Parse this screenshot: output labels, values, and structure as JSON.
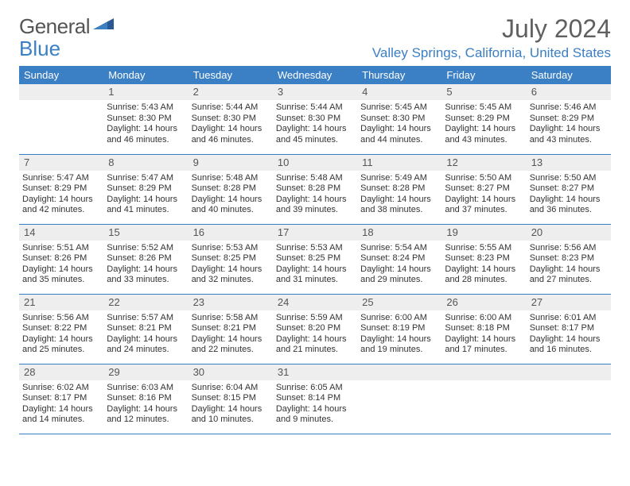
{
  "logo": {
    "text_general": "General",
    "text_blue": "Blue"
  },
  "title": "July 2024",
  "location": "Valley Springs, California, United States",
  "header_row": [
    "Sunday",
    "Monday",
    "Tuesday",
    "Wednesday",
    "Thursday",
    "Friday",
    "Saturday"
  ],
  "colors": {
    "accent": "#3b7fc4",
    "daynum_bg": "#eeeeee",
    "text": "#333333",
    "title_text": "#606060"
  },
  "weeks": [
    [
      {
        "num": "",
        "empty": true
      },
      {
        "num": "1",
        "sunrise": "Sunrise: 5:43 AM",
        "sunset": "Sunset: 8:30 PM",
        "day1": "Daylight: 14 hours",
        "day2": "and 46 minutes."
      },
      {
        "num": "2",
        "sunrise": "Sunrise: 5:44 AM",
        "sunset": "Sunset: 8:30 PM",
        "day1": "Daylight: 14 hours",
        "day2": "and 46 minutes."
      },
      {
        "num": "3",
        "sunrise": "Sunrise: 5:44 AM",
        "sunset": "Sunset: 8:30 PM",
        "day1": "Daylight: 14 hours",
        "day2": "and 45 minutes."
      },
      {
        "num": "4",
        "sunrise": "Sunrise: 5:45 AM",
        "sunset": "Sunset: 8:30 PM",
        "day1": "Daylight: 14 hours",
        "day2": "and 44 minutes."
      },
      {
        "num": "5",
        "sunrise": "Sunrise: 5:45 AM",
        "sunset": "Sunset: 8:29 PM",
        "day1": "Daylight: 14 hours",
        "day2": "and 43 minutes."
      },
      {
        "num": "6",
        "sunrise": "Sunrise: 5:46 AM",
        "sunset": "Sunset: 8:29 PM",
        "day1": "Daylight: 14 hours",
        "day2": "and 43 minutes."
      }
    ],
    [
      {
        "num": "7",
        "sunrise": "Sunrise: 5:47 AM",
        "sunset": "Sunset: 8:29 PM",
        "day1": "Daylight: 14 hours",
        "day2": "and 42 minutes."
      },
      {
        "num": "8",
        "sunrise": "Sunrise: 5:47 AM",
        "sunset": "Sunset: 8:29 PM",
        "day1": "Daylight: 14 hours",
        "day2": "and 41 minutes."
      },
      {
        "num": "9",
        "sunrise": "Sunrise: 5:48 AM",
        "sunset": "Sunset: 8:28 PM",
        "day1": "Daylight: 14 hours",
        "day2": "and 40 minutes."
      },
      {
        "num": "10",
        "sunrise": "Sunrise: 5:48 AM",
        "sunset": "Sunset: 8:28 PM",
        "day1": "Daylight: 14 hours",
        "day2": "and 39 minutes."
      },
      {
        "num": "11",
        "sunrise": "Sunrise: 5:49 AM",
        "sunset": "Sunset: 8:28 PM",
        "day1": "Daylight: 14 hours",
        "day2": "and 38 minutes."
      },
      {
        "num": "12",
        "sunrise": "Sunrise: 5:50 AM",
        "sunset": "Sunset: 8:27 PM",
        "day1": "Daylight: 14 hours",
        "day2": "and 37 minutes."
      },
      {
        "num": "13",
        "sunrise": "Sunrise: 5:50 AM",
        "sunset": "Sunset: 8:27 PM",
        "day1": "Daylight: 14 hours",
        "day2": "and 36 minutes."
      }
    ],
    [
      {
        "num": "14",
        "sunrise": "Sunrise: 5:51 AM",
        "sunset": "Sunset: 8:26 PM",
        "day1": "Daylight: 14 hours",
        "day2": "and 35 minutes."
      },
      {
        "num": "15",
        "sunrise": "Sunrise: 5:52 AM",
        "sunset": "Sunset: 8:26 PM",
        "day1": "Daylight: 14 hours",
        "day2": "and 33 minutes."
      },
      {
        "num": "16",
        "sunrise": "Sunrise: 5:53 AM",
        "sunset": "Sunset: 8:25 PM",
        "day1": "Daylight: 14 hours",
        "day2": "and 32 minutes."
      },
      {
        "num": "17",
        "sunrise": "Sunrise: 5:53 AM",
        "sunset": "Sunset: 8:25 PM",
        "day1": "Daylight: 14 hours",
        "day2": "and 31 minutes."
      },
      {
        "num": "18",
        "sunrise": "Sunrise: 5:54 AM",
        "sunset": "Sunset: 8:24 PM",
        "day1": "Daylight: 14 hours",
        "day2": "and 29 minutes."
      },
      {
        "num": "19",
        "sunrise": "Sunrise: 5:55 AM",
        "sunset": "Sunset: 8:23 PM",
        "day1": "Daylight: 14 hours",
        "day2": "and 28 minutes."
      },
      {
        "num": "20",
        "sunrise": "Sunrise: 5:56 AM",
        "sunset": "Sunset: 8:23 PM",
        "day1": "Daylight: 14 hours",
        "day2": "and 27 minutes."
      }
    ],
    [
      {
        "num": "21",
        "sunrise": "Sunrise: 5:56 AM",
        "sunset": "Sunset: 8:22 PM",
        "day1": "Daylight: 14 hours",
        "day2": "and 25 minutes."
      },
      {
        "num": "22",
        "sunrise": "Sunrise: 5:57 AM",
        "sunset": "Sunset: 8:21 PM",
        "day1": "Daylight: 14 hours",
        "day2": "and 24 minutes."
      },
      {
        "num": "23",
        "sunrise": "Sunrise: 5:58 AM",
        "sunset": "Sunset: 8:21 PM",
        "day1": "Daylight: 14 hours",
        "day2": "and 22 minutes."
      },
      {
        "num": "24",
        "sunrise": "Sunrise: 5:59 AM",
        "sunset": "Sunset: 8:20 PM",
        "day1": "Daylight: 14 hours",
        "day2": "and 21 minutes."
      },
      {
        "num": "25",
        "sunrise": "Sunrise: 6:00 AM",
        "sunset": "Sunset: 8:19 PM",
        "day1": "Daylight: 14 hours",
        "day2": "and 19 minutes."
      },
      {
        "num": "26",
        "sunrise": "Sunrise: 6:00 AM",
        "sunset": "Sunset: 8:18 PM",
        "day1": "Daylight: 14 hours",
        "day2": "and 17 minutes."
      },
      {
        "num": "27",
        "sunrise": "Sunrise: 6:01 AM",
        "sunset": "Sunset: 8:17 PM",
        "day1": "Daylight: 14 hours",
        "day2": "and 16 minutes."
      }
    ],
    [
      {
        "num": "28",
        "sunrise": "Sunrise: 6:02 AM",
        "sunset": "Sunset: 8:17 PM",
        "day1": "Daylight: 14 hours",
        "day2": "and 14 minutes."
      },
      {
        "num": "29",
        "sunrise": "Sunrise: 6:03 AM",
        "sunset": "Sunset: 8:16 PM",
        "day1": "Daylight: 14 hours",
        "day2": "and 12 minutes."
      },
      {
        "num": "30",
        "sunrise": "Sunrise: 6:04 AM",
        "sunset": "Sunset: 8:15 PM",
        "day1": "Daylight: 14 hours",
        "day2": "and 10 minutes."
      },
      {
        "num": "31",
        "sunrise": "Sunrise: 6:05 AM",
        "sunset": "Sunset: 8:14 PM",
        "day1": "Daylight: 14 hours",
        "day2": "and 9 minutes."
      },
      {
        "num": "",
        "empty": true
      },
      {
        "num": "",
        "empty": true
      },
      {
        "num": "",
        "empty": true
      }
    ]
  ]
}
